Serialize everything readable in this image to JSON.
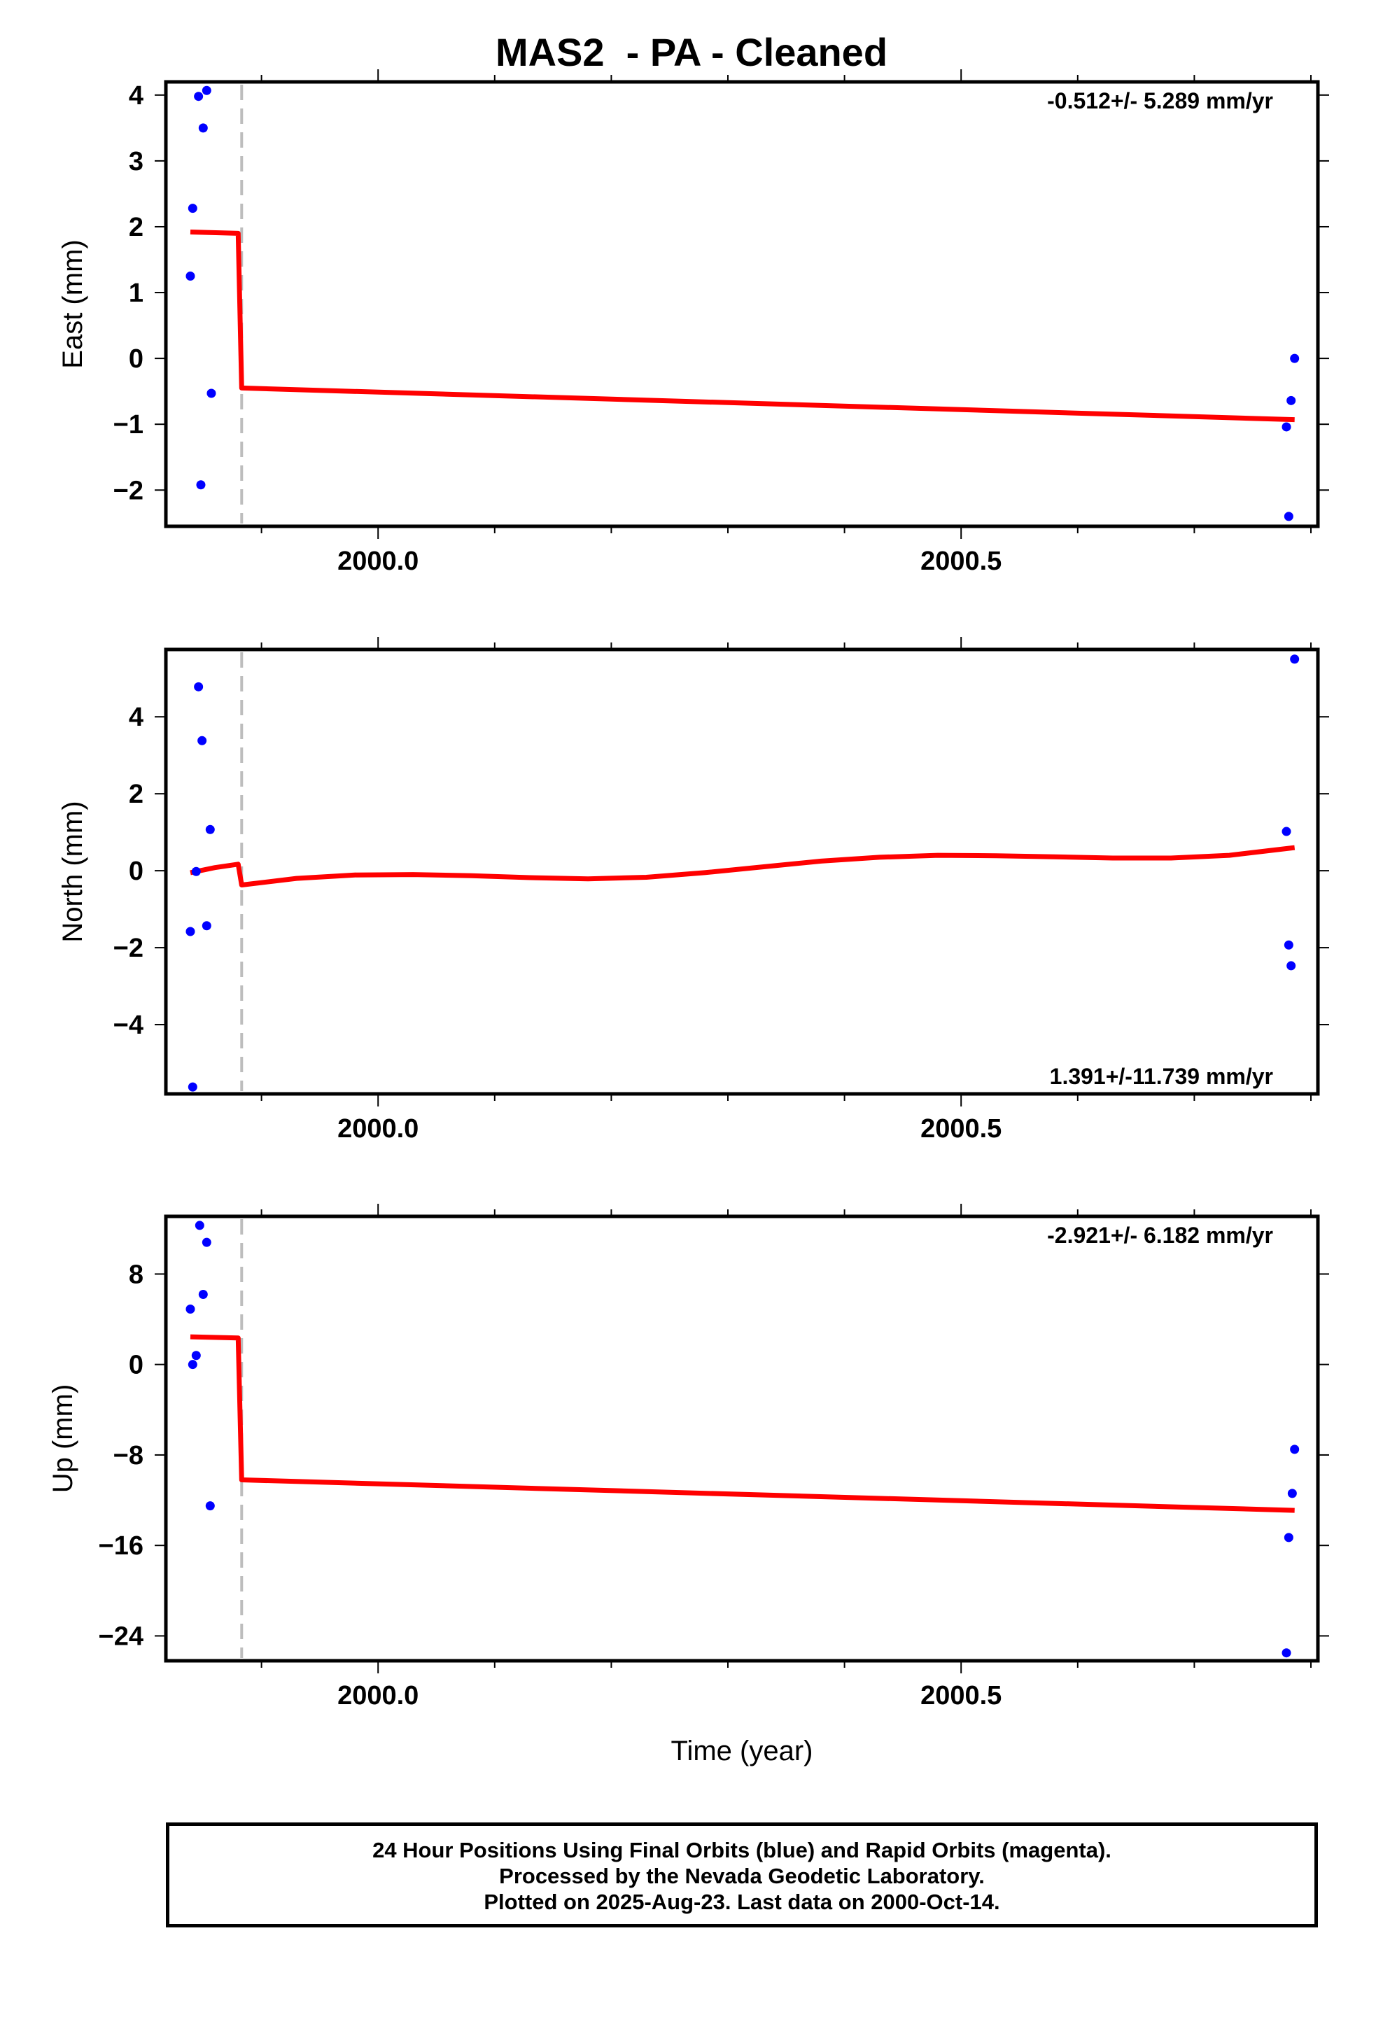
{
  "title": "MAS2  - PA - Cleaned",
  "chart_data": [
    {
      "type": "scatter",
      "ylabel": "East (mm)",
      "xlabel": "",
      "xlim": [
        1999.818,
        2000.806
      ],
      "ylim": [
        -2.55,
        4.2
      ],
      "yticks": [
        -2,
        -1,
        0,
        1,
        2,
        3,
        4
      ],
      "ytick_labels": [
        "−2",
        "−1",
        "0",
        "1",
        "2",
        "3",
        "4"
      ],
      "xticks": [
        2000.0,
        2000.5
      ],
      "xtick_labels": [
        "2000.0",
        "2000.5"
      ],
      "annotation": "-0.512+/- 5.289 mm/yr",
      "break_x": 1999.883,
      "points": [
        {
          "x": 1999.839,
          "y": 1.25
        },
        {
          "x": 1999.841,
          "y": 2.28
        },
        {
          "x": 1999.846,
          "y": 3.98
        },
        {
          "x": 1999.848,
          "y": -1.92
        },
        {
          "x": 1999.85,
          "y": 3.5
        },
        {
          "x": 1999.853,
          "y": 4.07
        },
        {
          "x": 1999.857,
          "y": -0.53
        },
        {
          "x": 2000.779,
          "y": -1.04
        },
        {
          "x": 2000.781,
          "y": -2.4
        },
        {
          "x": 2000.783,
          "y": -0.64
        },
        {
          "x": 2000.786,
          "y": 0.0
        }
      ],
      "model": [
        {
          "x": 1999.839,
          "y": 1.92
        },
        {
          "x": 1999.88,
          "y": 1.9
        },
        {
          "x": 1999.883,
          "y": -0.45
        },
        {
          "x": 2000.786,
          "y": -0.93
        }
      ]
    },
    {
      "type": "scatter",
      "ylabel": "North (mm)",
      "xlabel": "",
      "xlim": [
        1999.818,
        2000.806
      ],
      "ylim": [
        -5.8,
        5.75
      ],
      "yticks": [
        -4,
        -2,
        0,
        2,
        4
      ],
      "ytick_labels": [
        "−4",
        "−2",
        "0",
        "2",
        "4"
      ],
      "xticks": [
        2000.0,
        2000.5
      ],
      "xtick_labels": [
        "2000.0",
        "2000.5"
      ],
      "annotation": "1.391+/-11.739 mm/yr",
      "break_x": 1999.883,
      "points": [
        {
          "x": 1999.839,
          "y": -1.58
        },
        {
          "x": 1999.841,
          "y": -5.62
        },
        {
          "x": 1999.844,
          "y": -0.02
        },
        {
          "x": 1999.846,
          "y": 4.78
        },
        {
          "x": 1999.849,
          "y": 3.38
        },
        {
          "x": 1999.853,
          "y": -1.43
        },
        {
          "x": 1999.856,
          "y": 1.07
        },
        {
          "x": 2000.779,
          "y": 1.02
        },
        {
          "x": 2000.781,
          "y": -1.93
        },
        {
          "x": 2000.783,
          "y": -2.47
        },
        {
          "x": 2000.786,
          "y": 5.5
        }
      ],
      "model": [
        {
          "x": 1999.839,
          "y": -0.05
        },
        {
          "x": 1999.86,
          "y": 0.08
        },
        {
          "x": 1999.88,
          "y": 0.17
        },
        {
          "x": 1999.883,
          "y": -0.37
        },
        {
          "x": 1999.93,
          "y": -0.2
        },
        {
          "x": 1999.98,
          "y": -0.11
        },
        {
          "x": 2000.03,
          "y": -0.1
        },
        {
          "x": 2000.08,
          "y": -0.13
        },
        {
          "x": 2000.13,
          "y": -0.18
        },
        {
          "x": 2000.18,
          "y": -0.21
        },
        {
          "x": 2000.23,
          "y": -0.17
        },
        {
          "x": 2000.28,
          "y": -0.05
        },
        {
          "x": 2000.33,
          "y": 0.1
        },
        {
          "x": 2000.38,
          "y": 0.25
        },
        {
          "x": 2000.43,
          "y": 0.35
        },
        {
          "x": 2000.48,
          "y": 0.4
        },
        {
          "x": 2000.53,
          "y": 0.39
        },
        {
          "x": 2000.58,
          "y": 0.36
        },
        {
          "x": 2000.63,
          "y": 0.33
        },
        {
          "x": 2000.68,
          "y": 0.33
        },
        {
          "x": 2000.73,
          "y": 0.4
        },
        {
          "x": 2000.786,
          "y": 0.6
        }
      ]
    },
    {
      "type": "scatter",
      "ylabel": "Up (mm)",
      "xlabel": "Time (year)",
      "xlim": [
        1999.818,
        2000.806
      ],
      "ylim": [
        -26.2,
        13.1
      ],
      "yticks": [
        -24,
        -16,
        -8,
        0,
        8
      ],
      "ytick_labels": [
        "−24",
        "−16",
        "−8",
        "0",
        "8"
      ],
      "xticks": [
        2000.0,
        2000.5
      ],
      "xtick_labels": [
        "2000.0",
        "2000.5"
      ],
      "annotation": "-2.921+/- 6.182 mm/yr",
      "break_x": 1999.883,
      "points": [
        {
          "x": 1999.839,
          "y": 4.9
        },
        {
          "x": 1999.841,
          "y": 0.0
        },
        {
          "x": 1999.844,
          "y": 0.8
        },
        {
          "x": 1999.847,
          "y": 12.3
        },
        {
          "x": 1999.85,
          "y": 6.2
        },
        {
          "x": 1999.853,
          "y": 10.8
        },
        {
          "x": 1999.856,
          "y": -12.5
        },
        {
          "x": 2000.779,
          "y": -25.5
        },
        {
          "x": 2000.781,
          "y": -15.3
        },
        {
          "x": 2000.784,
          "y": -11.4
        },
        {
          "x": 2000.786,
          "y": -7.5
        }
      ],
      "model": [
        {
          "x": 1999.839,
          "y": 2.45
        },
        {
          "x": 1999.88,
          "y": 2.35
        },
        {
          "x": 1999.883,
          "y": -10.2
        },
        {
          "x": 2000.786,
          "y": -12.9
        }
      ]
    }
  ],
  "footer": {
    "line1": "24 Hour Positions Using Final Orbits (blue) and Rapid Orbits (magenta).",
    "line2": "Processed by the Nevada Geodetic Laboratory.",
    "line3": "Plotted on 2025-Aug-23. Last data on 2000-Oct-14."
  },
  "colors": {
    "points": "#0000ff",
    "model": "#ff0000",
    "break_line": "#bdbdbd",
    "frame": "#000000"
  }
}
